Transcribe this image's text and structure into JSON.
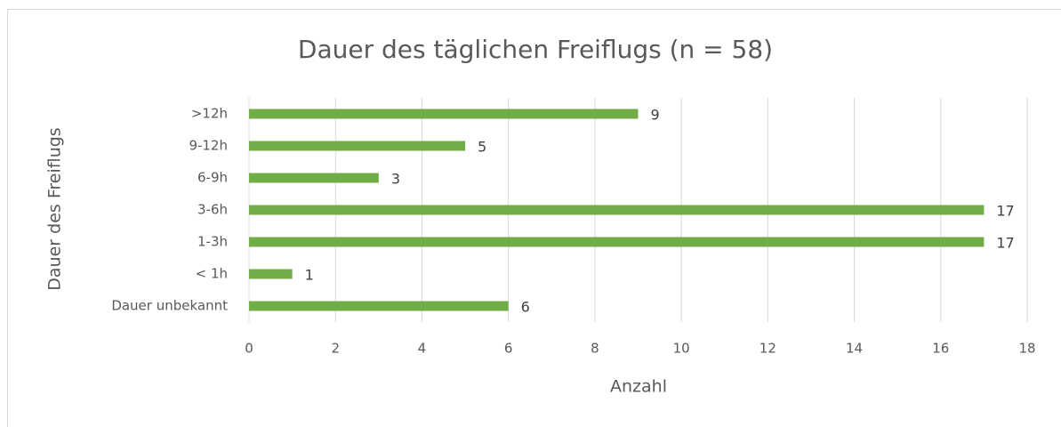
{
  "chart_data": {
    "type": "bar",
    "orientation": "horizontal",
    "title": "Dauer des täglichen Freiflugs (n = 58)",
    "x_label": "Anzahl",
    "y_label": "Dauer des Freiflugs",
    "categories": [
      ">12h",
      "9-12h",
      "6-9h",
      "3-6h",
      "1-3h",
      "< 1h",
      "Dauer unbekannt"
    ],
    "values": [
      9,
      5,
      3,
      17,
      17,
      1,
      6
    ],
    "color": "#70ad47",
    "xlim": [
      0,
      18
    ],
    "xticks": [
      0,
      2,
      4,
      6,
      8,
      10,
      12,
      14,
      16,
      18
    ],
    "grid": true
  }
}
